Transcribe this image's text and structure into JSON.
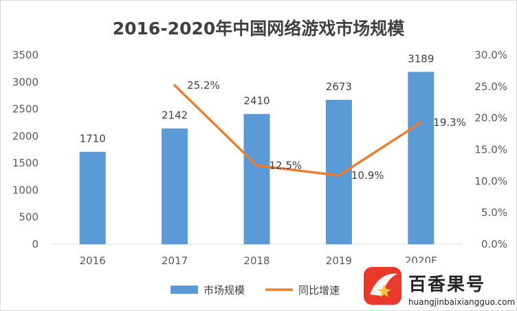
{
  "chart_data": {
    "type": "bar+line",
    "title": "2016-2020年中国网络游戏市场规模",
    "categories": [
      "2016",
      "2017",
      "2018",
      "2019",
      "2020F"
    ],
    "series": [
      {
        "name": "市场规模",
        "type": "bar",
        "axis": "left",
        "color": "#5b9bd5",
        "values": [
          1710,
          2142,
          2410,
          2673,
          3189
        ],
        "labels": [
          "1710",
          "2142",
          "2410",
          "2673",
          "3189"
        ]
      },
      {
        "name": "同比增速",
        "type": "line",
        "axis": "right",
        "color": "#ed7d31",
        "values": [
          null,
          25.2,
          12.5,
          10.9,
          19.3
        ],
        "labels": [
          "",
          "25.2%",
          "12.5%",
          "10.9%",
          "19.3%"
        ]
      }
    ],
    "y_left": {
      "min": 0,
      "max": 3500,
      "ticks": [
        "0",
        "500",
        "1000",
        "1500",
        "2000",
        "2500",
        "3000",
        "3500"
      ]
    },
    "y_right": {
      "min": 0,
      "max": 30,
      "ticks": [
        "0.0%",
        "5.0%",
        "10.0%",
        "15.0%",
        "20.0%",
        "25.0%",
        "30.0%"
      ]
    },
    "gridlines": false,
    "legend": "bottom"
  },
  "watermark": {
    "text": "百香果号",
    "url": "huangjinbaixiangguo.com"
  }
}
